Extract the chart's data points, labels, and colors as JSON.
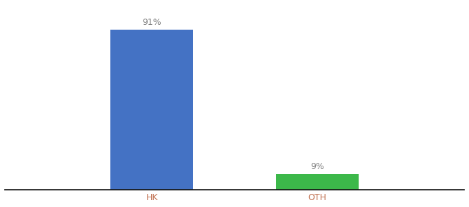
{
  "categories": [
    "HK",
    "OTH"
  ],
  "values": [
    91,
    9
  ],
  "bar_colors": [
    "#4472c4",
    "#3cb84a"
  ],
  "label_texts": [
    "91%",
    "9%"
  ],
  "background_color": "#ffffff",
  "text_color": "#808080",
  "xlabel_color": "#c07050",
  "ylim": [
    0,
    105
  ],
  "bar_width": 0.18,
  "positions": [
    0.32,
    0.68
  ],
  "xlim": [
    0.0,
    1.0
  ],
  "figsize": [
    6.8,
    3.0
  ],
  "dpi": 100,
  "spine_color": "#111111",
  "tick_label_fontsize": 9,
  "value_label_fontsize": 9
}
